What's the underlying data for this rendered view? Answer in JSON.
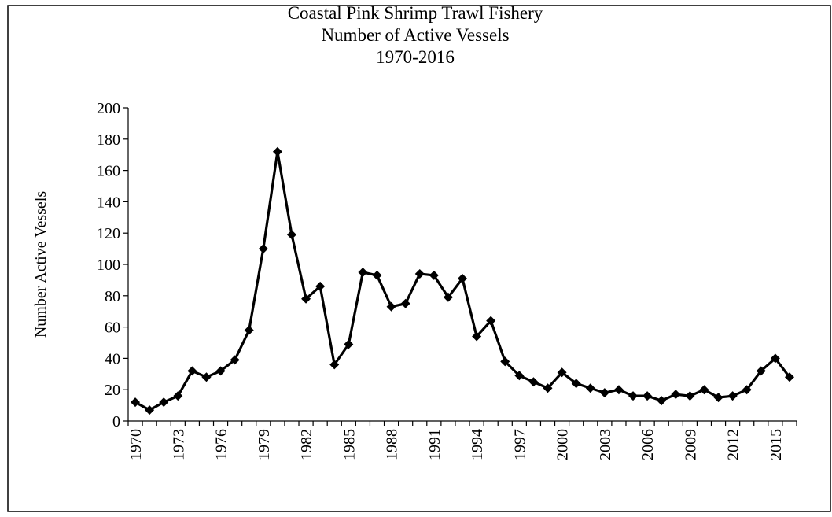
{
  "chart_data": {
    "type": "line",
    "title": [
      "Coastal Pink Shrimp Trawl Fishery",
      "Number of Active Vessels",
      "1970-2016"
    ],
    "y_label": "Number Active Vessels",
    "x": [
      1970,
      1971,
      1972,
      1973,
      1974,
      1975,
      1976,
      1977,
      1978,
      1979,
      1980,
      1981,
      1982,
      1983,
      1984,
      1985,
      1986,
      1987,
      1988,
      1989,
      1990,
      1991,
      1992,
      1993,
      1994,
      1995,
      1996,
      1997,
      1998,
      1999,
      2000,
      2001,
      2002,
      2003,
      2004,
      2005,
      2006,
      2007,
      2008,
      2009,
      2010,
      2011,
      2012,
      2013,
      2014,
      2015,
      2016
    ],
    "series": [
      {
        "color": "#000000",
        "values": [
          12,
          7,
          12,
          16,
          32,
          28,
          32,
          39,
          58,
          110,
          172,
          119,
          78,
          86,
          36,
          49,
          95,
          93,
          73,
          75,
          94,
          93,
          79,
          91,
          54,
          64,
          38,
          29,
          25,
          21,
          31,
          24,
          21,
          18,
          20,
          16,
          16,
          13,
          17,
          16,
          20,
          15,
          16,
          20,
          32,
          40,
          28
        ]
      }
    ],
    "xlim": [
      1969.5,
      2016.5
    ],
    "xticks": [
      1970,
      1973,
      1976,
      1979,
      1982,
      1985,
      1988,
      1991,
      1994,
      1997,
      2000,
      2003,
      2006,
      2009,
      2012,
      2015
    ],
    "ylim": [
      0,
      200
    ],
    "yticks": [
      0,
      20,
      40,
      60,
      80,
      100,
      120,
      140,
      160,
      180,
      200
    ],
    "grid": false
  }
}
